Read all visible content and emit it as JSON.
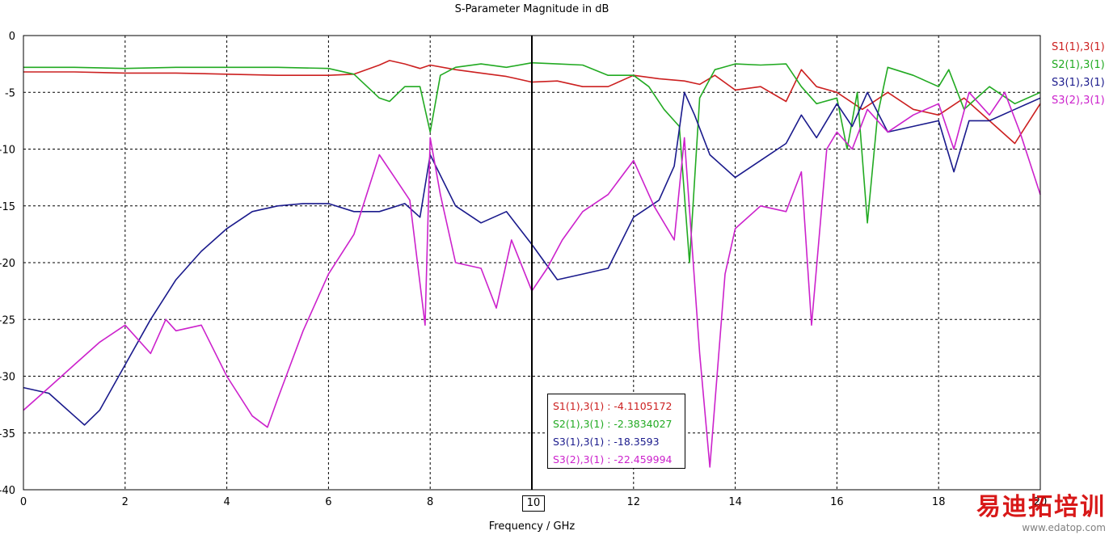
{
  "chart_data": {
    "type": "line",
    "title": "S-Parameter Magnitude in dB",
    "xlabel": "Frequency / GHz",
    "ylabel": "",
    "xlim": [
      0,
      20
    ],
    "ylim": [
      -40,
      0
    ],
    "xticks": [
      0,
      2,
      4,
      6,
      8,
      10,
      12,
      14,
      16,
      18,
      20
    ],
    "yticks": [
      0,
      -5,
      -10,
      -15,
      -20,
      -25,
      -30,
      -35,
      -40
    ],
    "grid": true,
    "legend_position": "right",
    "marker_x": 10,
    "series": [
      {
        "name": "S1(1),3(1)",
        "color": "#cc2020",
        "x": [
          0,
          1,
          2,
          3,
          4,
          5,
          6,
          6.5,
          7,
          7.2,
          7.5,
          7.8,
          8,
          8.5,
          9,
          9.5,
          10,
          10.5,
          11,
          11.5,
          12,
          12.5,
          13,
          13.3,
          13.6,
          14,
          14.5,
          15,
          15.3,
          15.6,
          16,
          16.5,
          17,
          17.5,
          18,
          18.5,
          19,
          19.5,
          20
        ],
        "y": [
          -3.2,
          -3.2,
          -3.3,
          -3.3,
          -3.4,
          -3.5,
          -3.5,
          -3.4,
          -2.6,
          -2.2,
          -2.5,
          -2.9,
          -2.6,
          -3.0,
          -3.3,
          -3.6,
          -4.1,
          -4.0,
          -4.5,
          -4.5,
          -3.5,
          -3.8,
          -4.0,
          -4.3,
          -3.5,
          -4.8,
          -4.5,
          -5.8,
          -3.0,
          -4.5,
          -5.0,
          -6.5,
          -5.0,
          -6.5,
          -7.0,
          -5.5,
          -7.5,
          -9.5,
          -6.0
        ]
      },
      {
        "name": "S2(1),3(1)",
        "color": "#22aa22",
        "x": [
          0,
          1,
          2,
          3,
          4,
          5,
          6,
          6.5,
          7,
          7.2,
          7.5,
          7.8,
          8,
          8.2,
          8.5,
          9,
          9.5,
          10,
          10.5,
          11,
          11.5,
          12,
          12.3,
          12.6,
          12.9,
          13.1,
          13.3,
          13.6,
          14,
          14.5,
          15,
          15.3,
          15.6,
          16,
          16.2,
          16.4,
          16.6,
          16.8,
          17,
          17.5,
          18,
          18.2,
          18.5,
          19,
          19.5,
          20
        ],
        "y": [
          -2.8,
          -2.8,
          -2.9,
          -2.8,
          -2.8,
          -2.8,
          -2.9,
          -3.4,
          -5.5,
          -5.8,
          -4.5,
          -4.5,
          -8.5,
          -3.5,
          -2.8,
          -2.5,
          -2.8,
          -2.4,
          -2.5,
          -2.6,
          -3.5,
          -3.5,
          -4.5,
          -6.5,
          -8.0,
          -20.0,
          -5.5,
          -3.0,
          -2.5,
          -2.6,
          -2.5,
          -4.5,
          -6.0,
          -5.5,
          -10.0,
          -5.0,
          -16.5,
          -7.0,
          -2.8,
          -3.5,
          -4.5,
          -3.0,
          -6.5,
          -4.5,
          -6.0,
          -5.0
        ]
      },
      {
        "name": "S3(1),3(1)",
        "color": "#1a1a8c",
        "x": [
          0,
          0.5,
          1,
          1.2,
          1.5,
          2,
          2.5,
          3,
          3.5,
          4,
          4.5,
          5,
          5.5,
          6,
          6.5,
          7,
          7.5,
          7.8,
          8,
          8.5,
          9,
          9.5,
          10,
          10.5,
          11,
          11.5,
          12,
          12.5,
          12.8,
          13,
          13.2,
          13.5,
          14,
          14.5,
          15,
          15.3,
          15.6,
          16,
          16.3,
          16.6,
          17,
          17.5,
          18,
          18.3,
          18.6,
          19,
          19.5,
          20
        ],
        "y": [
          -31.0,
          -31.5,
          -33.5,
          -34.3,
          -33.0,
          -29.0,
          -25.0,
          -21.5,
          -19.0,
          -17.0,
          -15.5,
          -15.0,
          -14.8,
          -14.8,
          -15.5,
          -15.5,
          -14.8,
          -16.0,
          -10.5,
          -15.0,
          -16.5,
          -15.5,
          -18.4,
          -21.5,
          -21.0,
          -20.5,
          -16.0,
          -14.5,
          -11.5,
          -5.0,
          -7.0,
          -10.5,
          -12.5,
          -11.0,
          -9.5,
          -7.0,
          -9.0,
          -6.0,
          -8.0,
          -5.0,
          -8.5,
          -8.0,
          -7.5,
          -12.0,
          -7.5,
          -7.5,
          -6.5,
          -5.5
        ]
      },
      {
        "name": "S3(2),3(1)",
        "color": "#cc22cc",
        "x": [
          0,
          0.5,
          1,
          1.5,
          2,
          2.5,
          2.8,
          3,
          3.5,
          4,
          4.5,
          4.8,
          5,
          5.5,
          6,
          6.5,
          7,
          7.3,
          7.6,
          7.9,
          8,
          8.2,
          8.5,
          9,
          9.3,
          9.6,
          10,
          10.3,
          10.6,
          11,
          11.5,
          12,
          12.4,
          12.8,
          13,
          13.3,
          13.5,
          13.8,
          14,
          14.5,
          15,
          15.3,
          15.5,
          15.8,
          16,
          16.3,
          16.6,
          17,
          17.5,
          18,
          18.3,
          18.6,
          19,
          19.3,
          19.6,
          20
        ],
        "y": [
          -33.0,
          -31.0,
          -29.0,
          -27.0,
          -25.5,
          -28.0,
          -25.0,
          -26.0,
          -25.5,
          -30.0,
          -33.5,
          -34.5,
          -32.0,
          -26.0,
          -21.0,
          -17.5,
          -10.5,
          -12.5,
          -14.5,
          -25.5,
          -9.0,
          -14.0,
          -20.0,
          -20.5,
          -24.0,
          -18.0,
          -22.5,
          -20.5,
          -18.0,
          -15.5,
          -14.0,
          -11.0,
          -15.0,
          -18.0,
          -9.0,
          -28.0,
          -38.0,
          -21.0,
          -17.0,
          -15.0,
          -15.5,
          -12.0,
          -25.5,
          -10.0,
          -8.5,
          -10.0,
          -6.5,
          -8.5,
          -7.0,
          -6.0,
          -10.0,
          -5.0,
          -7.0,
          -5.0,
          -8.5,
          -14.0
        ]
      }
    ],
    "marker_readout": [
      {
        "text": "S1(1),3(1) : -4.1105172",
        "color": "#cc2020"
      },
      {
        "text": "S2(1),3(1) : -2.3834027",
        "color": "#22aa22"
      },
      {
        "text": "S3(1),3(1) : -18.3593",
        "color": "#1a1a8c"
      },
      {
        "text": "S3(2),3(1) : -22.459994",
        "color": "#cc22cc"
      }
    ],
    "marker_label": "10"
  },
  "watermark": {
    "cn_text": "易迪拓培训",
    "url": "www.edatop.com"
  }
}
